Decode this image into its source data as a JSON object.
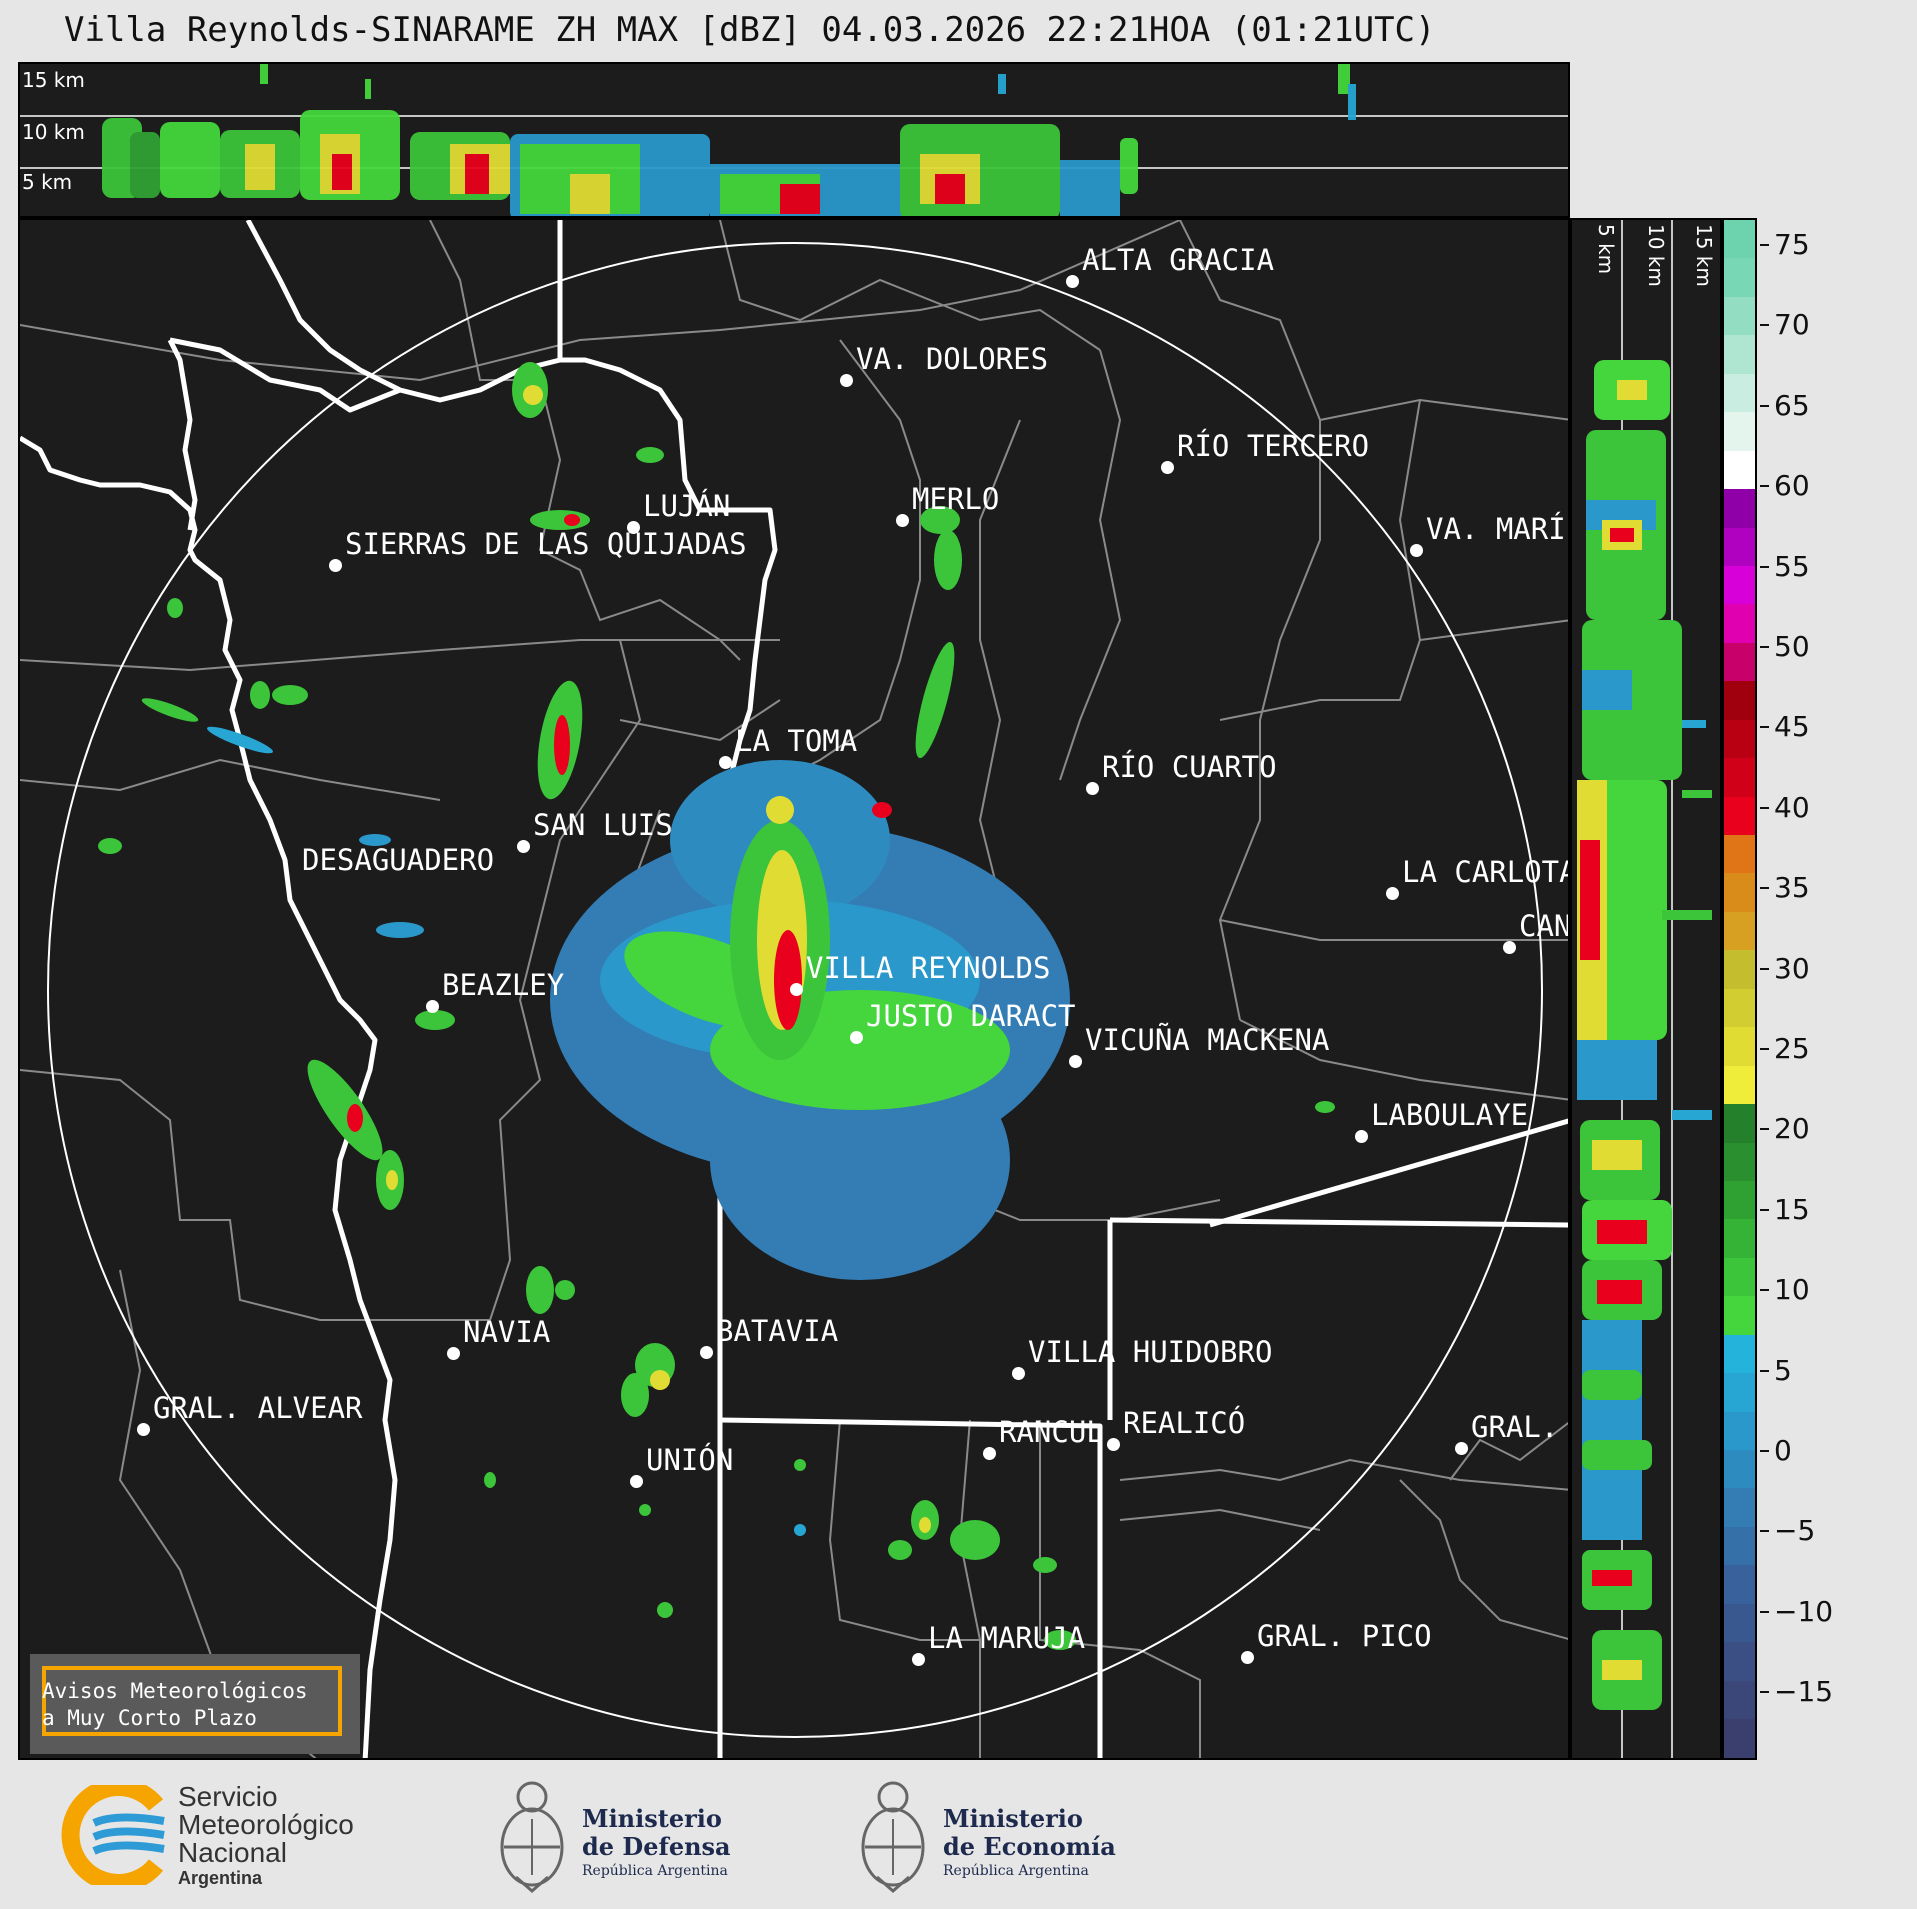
{
  "title": "Villa Reynolds-SINARAME ZH MAX [dBZ] 04.03.2026 22:21HOA (01:21UTC)",
  "top_strip": {
    "height_labels": [
      "15 km",
      "10 km",
      "5 km"
    ]
  },
  "side_strip": {
    "height_labels": [
      "5 km",
      "10 km",
      "15 km"
    ]
  },
  "colorbar": {
    "unit": "dBZ",
    "ticks": [
      "75",
      "70",
      "65",
      "60",
      "55",
      "50",
      "45",
      "40",
      "35",
      "30",
      "25",
      "20",
      "15",
      "10",
      "5",
      "0",
      "−5",
      "−10",
      "−15"
    ],
    "colors_low_to_high": [
      "#3a3f6e",
      "#3b4779",
      "#3b4f84",
      "#3a5890",
      "#39629c",
      "#3670a8",
      "#337db4",
      "#2e8bbf",
      "#2a98ca",
      "#27a6d4",
      "#23b3db",
      "#44d63c",
      "#3cc43a",
      "#35b336",
      "#2fa133",
      "#2a8f2f",
      "#24802b",
      "#f0ec3a",
      "#e0dc34",
      "#d2ce32",
      "#c4be2f",
      "#d8a022",
      "#d98c1a",
      "#e07518",
      "#e8001c",
      "#d00018",
      "#b80012",
      "#a0000e",
      "#c8006a",
      "#e000b0",
      "#d800d8",
      "#b000c0",
      "#9000a8",
      "#ffffff",
      "#e4f5ee",
      "#c9ede0",
      "#aee6d1",
      "#93dec3",
      "#78d7b5",
      "#6dd3ae"
    ]
  },
  "cities": [
    {
      "name": "ALTA GRACIA"
    },
    {
      "name": "VA. DOLORES"
    },
    {
      "name": "RÍO TERCERO"
    },
    {
      "name": "LUJÁN"
    },
    {
      "name": "MERLO"
    },
    {
      "name": "VA. MARÍ"
    },
    {
      "name": "SIERRAS DE LAS QUIJADAS"
    },
    {
      "name": "LA TOMA"
    },
    {
      "name": "RÍO CUARTO"
    },
    {
      "name": "SAN LUIS"
    },
    {
      "name": "DESAGUADERO"
    },
    {
      "name": "LA CARLOTA"
    },
    {
      "name": "CAN"
    },
    {
      "name": "VILLA REYNOLDS"
    },
    {
      "name": "BEAZLEY"
    },
    {
      "name": "JUSTO DARACT"
    },
    {
      "name": "VICUÑA MACKENA"
    },
    {
      "name": "LABOULAYE"
    },
    {
      "name": "NAVIA"
    },
    {
      "name": "BATAVIA"
    },
    {
      "name": "VILLA HUIDOBRO"
    },
    {
      "name": "GRAL. ALVEAR"
    },
    {
      "name": "RANCUL"
    },
    {
      "name": "REALICÓ"
    },
    {
      "name": "GRAL."
    },
    {
      "name": "UNIÓN"
    },
    {
      "name": "LA MARUJA"
    },
    {
      "name": "GRAL. PICO"
    }
  ],
  "avisos": {
    "line1": "Avisos Meteorológicos",
    "line2": "a Muy Corto Plazo"
  },
  "footer": {
    "smn": {
      "line1": "Servicio",
      "line2": "Meteorológico",
      "line3": "Nacional",
      "line4": "Argentina"
    },
    "defensa": {
      "line1": "Ministerio",
      "line2": "de Defensa",
      "line3": "República Argentina"
    },
    "economia": {
      "line1": "Ministerio",
      "line2": "de Economía",
      "line3": "República Argentina"
    }
  }
}
